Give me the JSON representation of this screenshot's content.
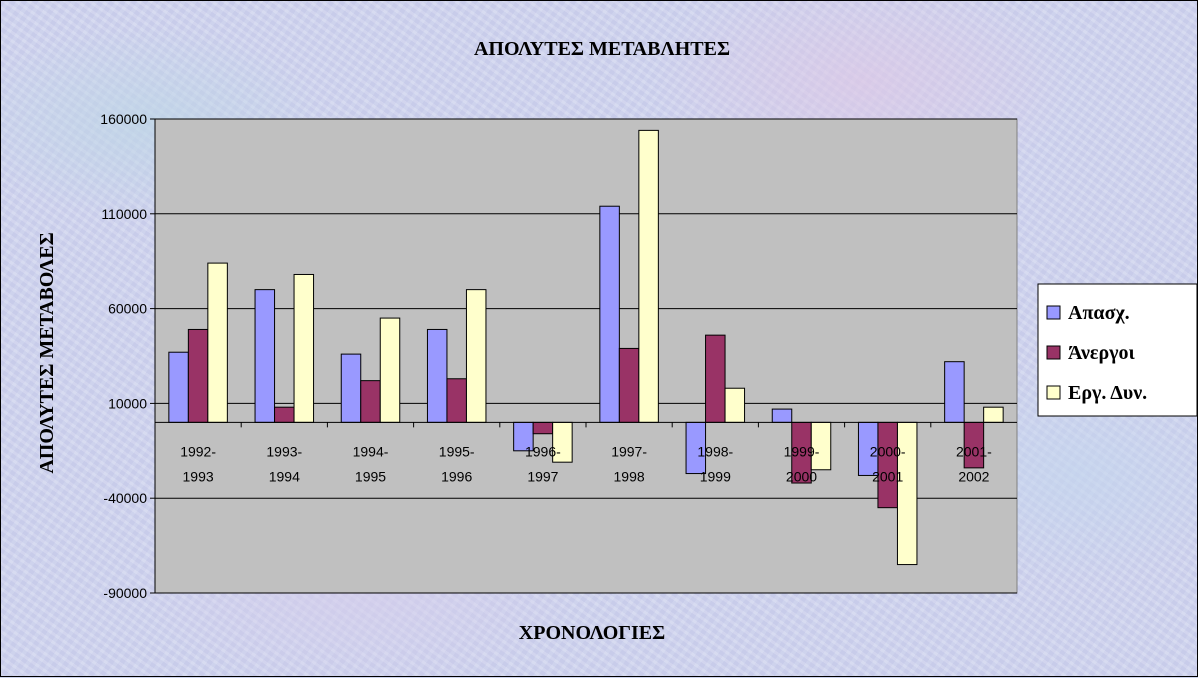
{
  "chart_data": {
    "type": "bar",
    "title": "ΑΠΟΛΥΤΕΣ ΜΕΤΑΒΛΗΤΕΣ",
    "xlabel": "ΧΡΟΝΟΛΟΓΙΕΣ",
    "ylabel": "ΑΠΟΛΥΤΕΣ ΜΕΤΑΒΟΛΕΣ",
    "categories": [
      [
        "1992-",
        "1993"
      ],
      [
        "1993-",
        "1994"
      ],
      [
        "1994-",
        "1995"
      ],
      [
        "1995-",
        "1996"
      ],
      [
        "1996-",
        "1997"
      ],
      [
        "1997-",
        "1998"
      ],
      [
        "1998-",
        "1999"
      ],
      [
        "1999-",
        "2000"
      ],
      [
        "2000-",
        "2001"
      ],
      [
        "2001-",
        "2002"
      ]
    ],
    "ylim": [
      -90000,
      160000
    ],
    "yticks": [
      "160000",
      "110000",
      "60000",
      "10000",
      "-40000",
      "-90000"
    ],
    "ytick_values": [
      160000,
      110000,
      60000,
      10000,
      -40000,
      -90000
    ],
    "grid": true,
    "legend_position": "right",
    "plot_background": "#c0c0c0",
    "series": [
      {
        "name": "Απασχ.",
        "color": "#9999ff",
        "values": [
          37000,
          70000,
          36000,
          49000,
          -15000,
          114000,
          -27000,
          7000,
          -28000,
          32000
        ]
      },
      {
        "name": "Άνεργοι",
        "color": "#993366",
        "values": [
          49000,
          8000,
          22000,
          23000,
          -6000,
          39000,
          46000,
          -32000,
          -45000,
          -24000
        ]
      },
      {
        "name": "Εργ. Δυν.",
        "color": "#ffffcc",
        "values": [
          84000,
          78000,
          55000,
          70000,
          -21000,
          154000,
          18000,
          -25000,
          -75000,
          8000
        ]
      }
    ]
  }
}
